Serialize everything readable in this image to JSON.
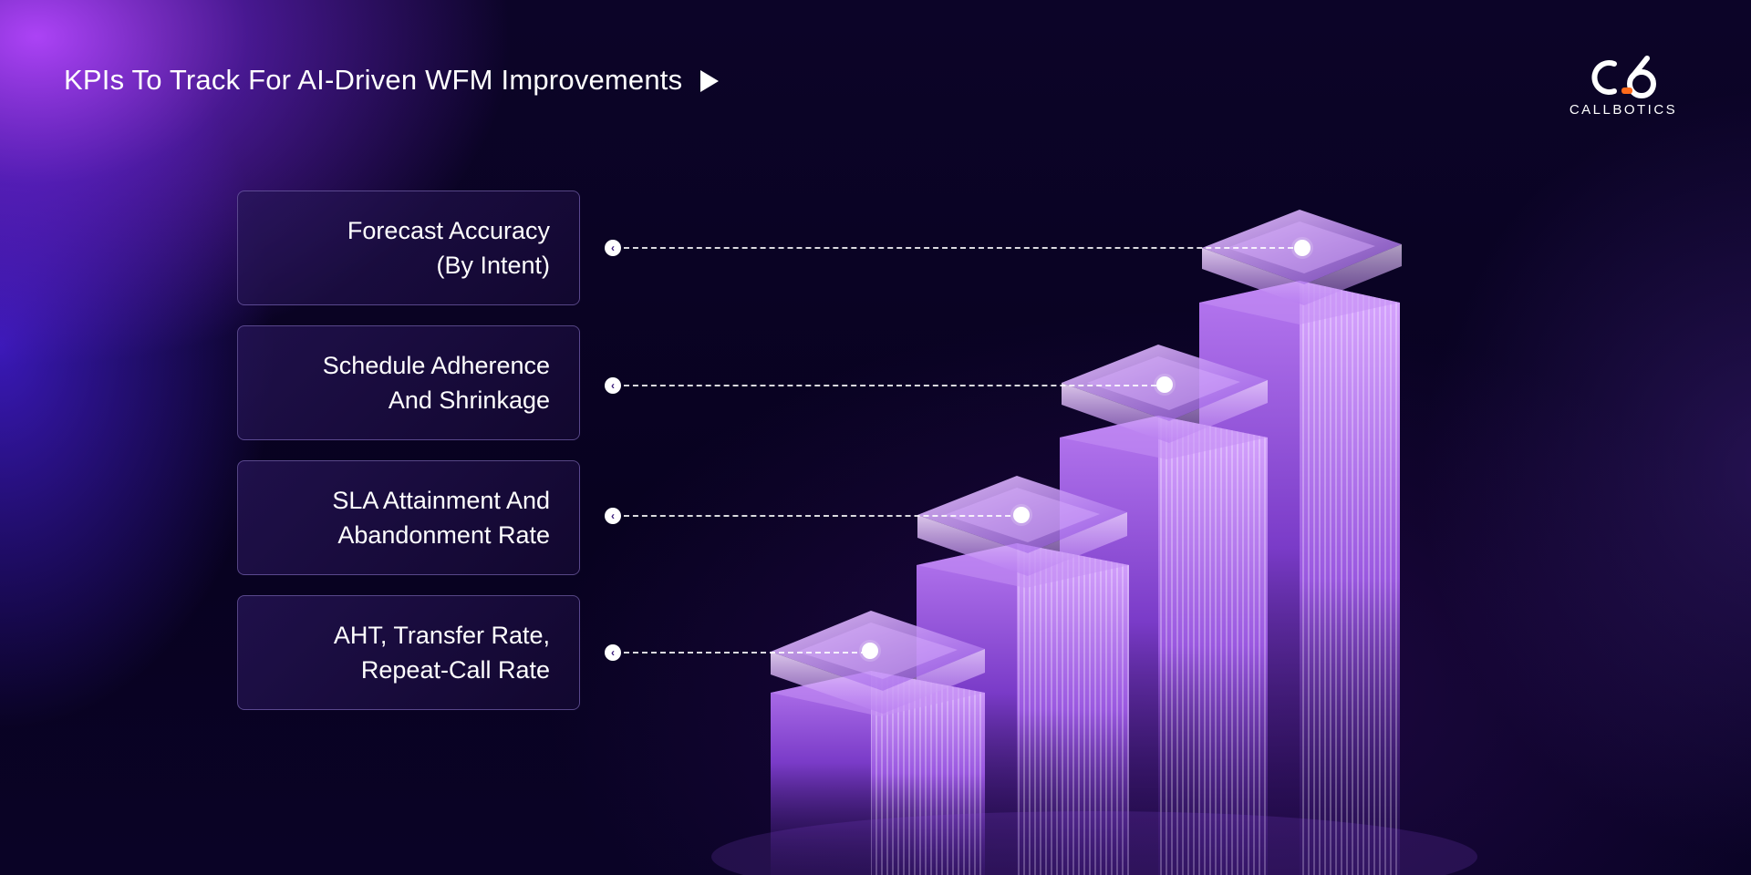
{
  "header": {
    "title": "KPIs To Track For AI-Driven WFM Improvements"
  },
  "logo": {
    "text": "CALLBOTICS",
    "accent_color": "#ff6a1a"
  },
  "kpis": [
    {
      "label": "Forecast Accuracy\n(By Intent)"
    },
    {
      "label": "Schedule Adherence\nAnd Shrinkage"
    },
    {
      "label": "SLA Attainment And\nAbandonment Rate"
    },
    {
      "label": "AHT, Transfer Rate,\nRepeat-Call Rate"
    }
  ],
  "colors": {
    "background": "#090322",
    "bar_light": "#c58cf2",
    "bar_mid": "#8f4fd6",
    "bar_dark": "#4a1f8a",
    "glass_slab": "#d7a9ff"
  },
  "icons": {
    "header_arrow": "play-triangle-icon",
    "connector_start": "chevron-left-icon"
  }
}
